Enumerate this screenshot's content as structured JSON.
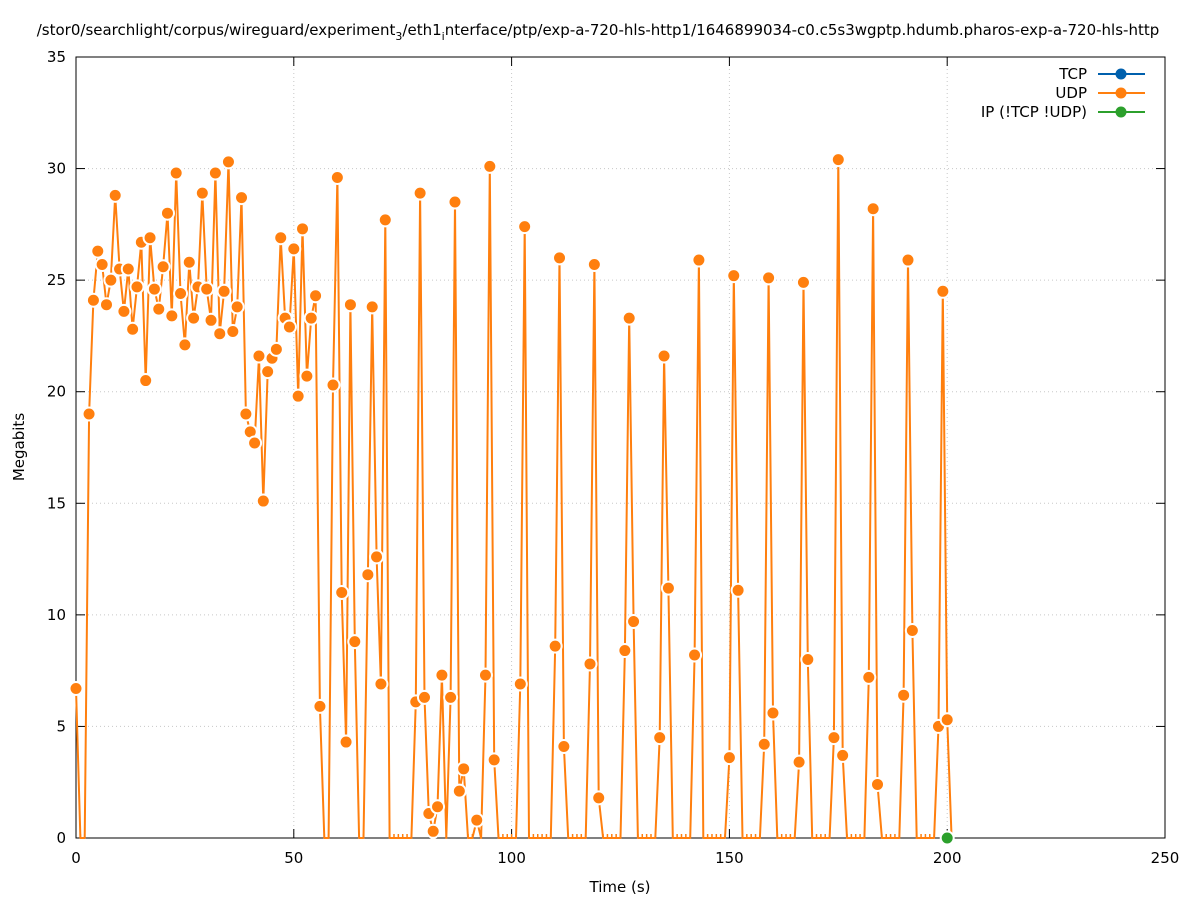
{
  "chart_data": {
    "type": "line",
    "title": "/stor0/searchlight/corpus/wireguard/experiment",
    "title_sub": "3",
    "title_mid": "/eth1",
    "title_sub2": "i",
    "title_end": "nterface/ptp/exp-a-720-hls-http1/1646899034-c0.c5s3wgptp.hdumb.pharos-exp-a-720-hls-http",
    "xlabel": "Time (s)",
    "ylabel": "Megabits",
    "xlim": [
      0,
      250
    ],
    "ylim": [
      0,
      35
    ],
    "xticks": [
      0,
      50,
      100,
      150,
      200,
      250
    ],
    "yticks": [
      0,
      5,
      10,
      15,
      20,
      25,
      30,
      35
    ],
    "grid": true,
    "legend_position": "top-right",
    "series": [
      {
        "name": "TCP",
        "color": "#0060ad",
        "x": [],
        "y": []
      },
      {
        "name": "UDP",
        "color": "#ff7f0e",
        "x": [
          0,
          1,
          2,
          3,
          4,
          5,
          6,
          7,
          8,
          9,
          10,
          11,
          12,
          13,
          14,
          15,
          16,
          17,
          18,
          19,
          20,
          21,
          22,
          23,
          24,
          25,
          26,
          27,
          28,
          29,
          30,
          31,
          32,
          33,
          34,
          35,
          36,
          37,
          38,
          39,
          40,
          41,
          42,
          43,
          44,
          45,
          46,
          47,
          48,
          49,
          50,
          51,
          52,
          53,
          54,
          55,
          56,
          57,
          58,
          59,
          60,
          61,
          62,
          63,
          64,
          65,
          66,
          67,
          68,
          69,
          70,
          71,
          72,
          73,
          74,
          75,
          76,
          77,
          78,
          79,
          80,
          81,
          82,
          83,
          84,
          85,
          86,
          87,
          88,
          89,
          90,
          91,
          92,
          93,
          94,
          95,
          96,
          97,
          98,
          99,
          100,
          101,
          102,
          103,
          104,
          105,
          106,
          107,
          108,
          109,
          110,
          111,
          112,
          113,
          114,
          115,
          116,
          117,
          118,
          119,
          120,
          121,
          122,
          123,
          124,
          125,
          126,
          127,
          128,
          129,
          130,
          131,
          132,
          133,
          134,
          135,
          136,
          137,
          138,
          139,
          140,
          141,
          142,
          143,
          144,
          145,
          146,
          147,
          148,
          149,
          150,
          151,
          152,
          153,
          154,
          155,
          156,
          157,
          158,
          159,
          160,
          161,
          162,
          163,
          164,
          165,
          166,
          167,
          168,
          169,
          170,
          171,
          172,
          173,
          174,
          175,
          176,
          177,
          178,
          179,
          180,
          181,
          182,
          183,
          184,
          185,
          186,
          187,
          188,
          189,
          190,
          191,
          192,
          193,
          194,
          195,
          196,
          197,
          198,
          199,
          200,
          201
        ],
        "y": [
          6.7,
          0,
          0,
          19.0,
          24.1,
          26.3,
          25.7,
          23.9,
          25.0,
          28.8,
          25.5,
          23.6,
          25.5,
          22.8,
          24.7,
          26.7,
          20.5,
          26.9,
          24.6,
          23.7,
          25.6,
          28.0,
          23.4,
          29.8,
          24.4,
          22.1,
          25.8,
          23.3,
          24.7,
          28.9,
          24.6,
          23.2,
          29.8,
          22.6,
          24.5,
          30.3,
          22.7,
          23.8,
          28.7,
          19.0,
          18.2,
          17.7,
          21.6,
          15.1,
          20.9,
          21.5,
          21.9,
          26.9,
          23.3,
          22.9,
          26.4,
          19.8,
          27.3,
          20.7,
          23.3,
          24.3,
          5.9,
          0,
          0,
          20.3,
          29.6,
          11.0,
          4.3,
          23.9,
          8.8,
          0,
          0,
          11.8,
          23.8,
          12.6,
          6.9,
          27.7,
          0,
          0,
          0,
          0,
          0,
          0,
          6.1,
          28.9,
          6.3,
          1.1,
          0.3,
          1.4,
          7.3,
          0,
          6.3,
          28.5,
          2.1,
          3.1,
          0,
          0,
          0.8,
          0,
          7.3,
          30.1,
          3.5,
          0,
          0,
          0,
          0,
          0,
          6.9,
          27.4,
          0,
          0,
          0,
          0,
          0,
          0,
          8.6,
          26.0,
          4.1,
          0,
          0,
          0,
          0,
          0,
          7.8,
          25.7,
          1.8,
          0,
          0,
          0,
          0,
          0,
          8.4,
          23.3,
          9.7,
          0,
          0,
          0,
          0,
          0,
          4.5,
          21.6,
          11.2,
          0,
          0,
          0,
          0,
          0,
          8.2,
          25.9,
          0,
          0,
          0,
          0,
          0,
          0,
          3.6,
          25.2,
          11.1,
          0,
          0,
          0,
          0,
          0,
          4.2,
          25.1,
          5.6,
          0,
          0,
          0,
          0,
          0,
          3.4,
          24.9,
          8.0,
          0,
          0,
          0,
          0,
          0,
          4.5,
          30.4,
          3.7,
          0,
          0,
          0,
          0,
          0,
          7.2,
          28.2,
          2.4,
          0,
          0,
          0,
          0,
          0,
          6.4,
          25.9,
          9.3,
          0,
          0,
          0,
          0,
          0,
          5.0,
          24.5,
          5.3,
          0
        ]
      },
      {
        "name": "IP (!TCP  !UDP)",
        "color": "#2ca02c",
        "x": [
          200
        ],
        "y": [
          0
        ]
      }
    ]
  }
}
